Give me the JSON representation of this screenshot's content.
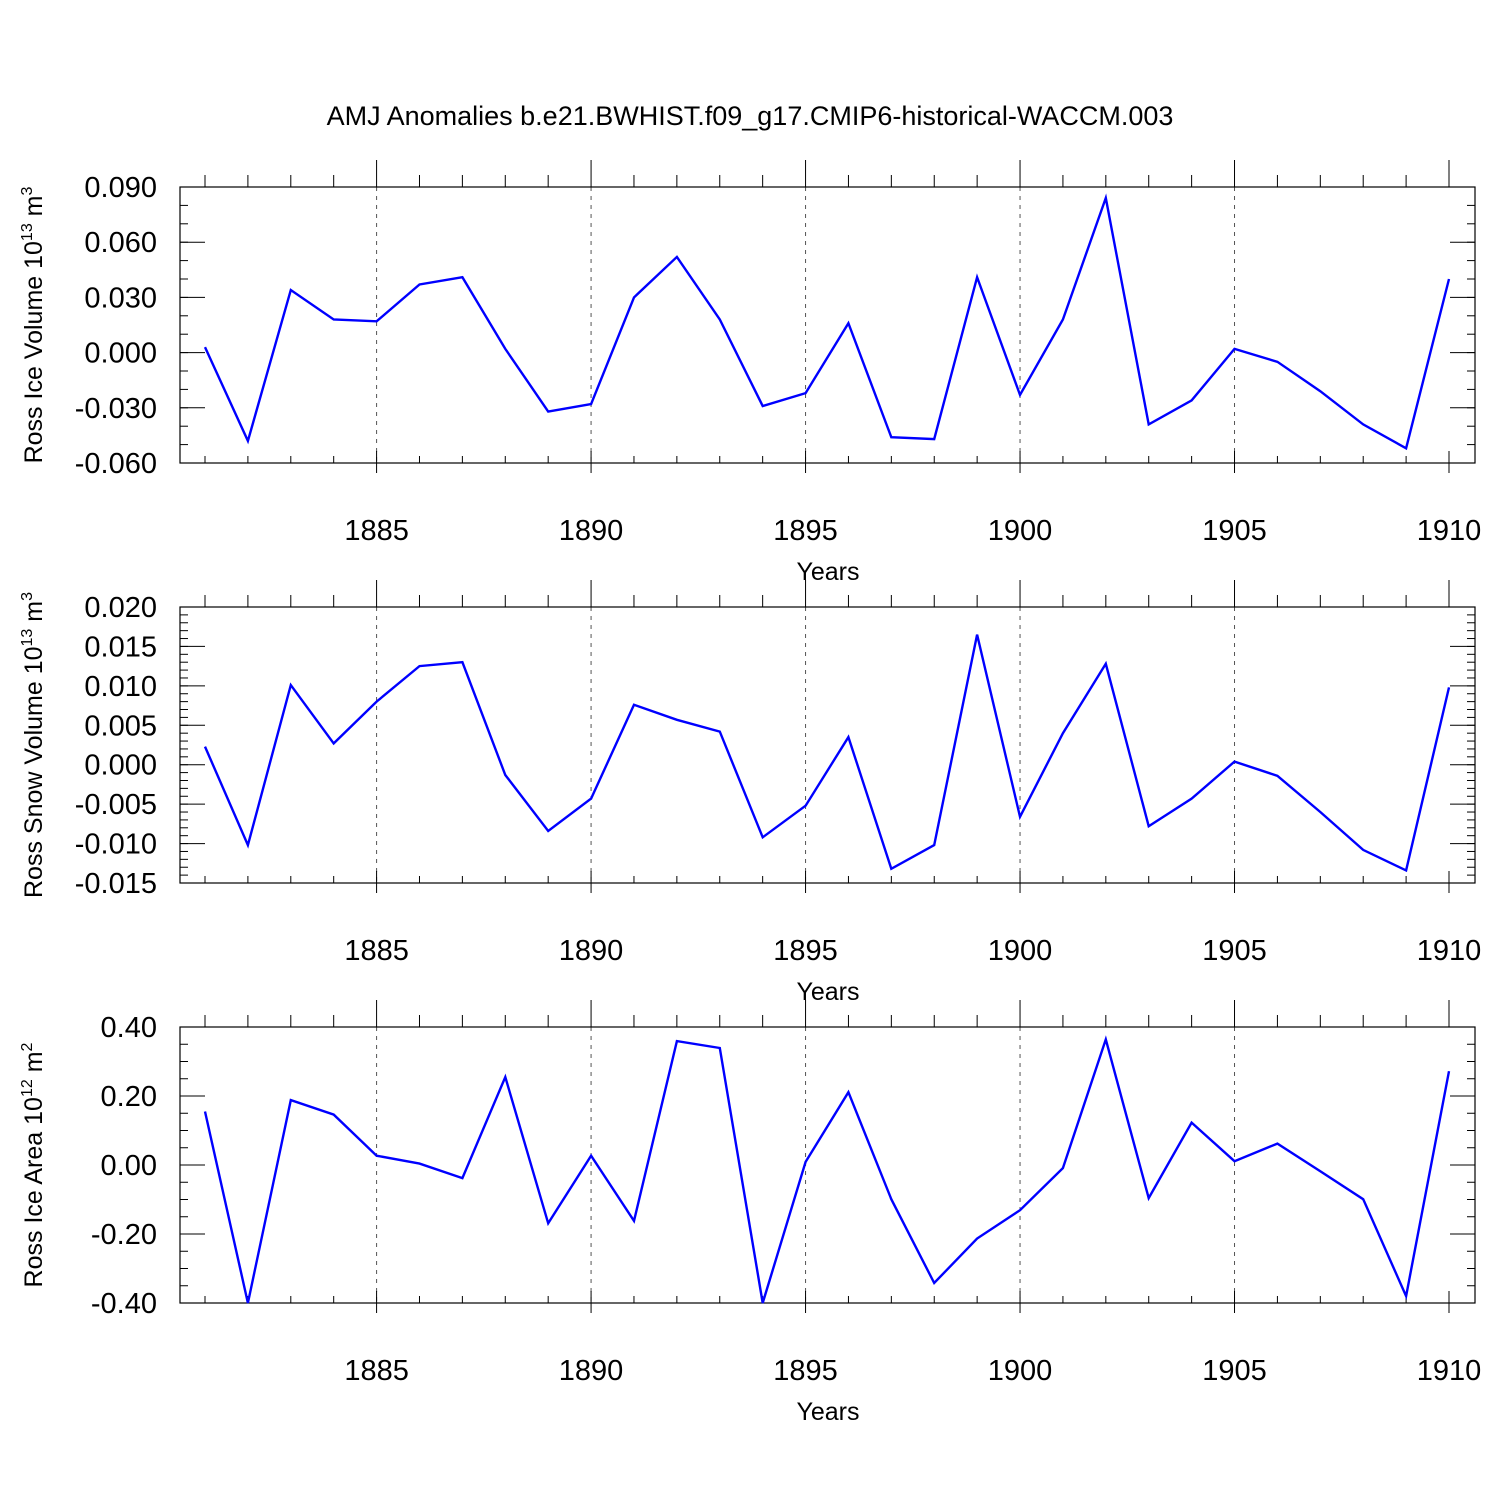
{
  "title": "AMJ Anomalies b.e21.BWHIST.f09_g17.CMIP6-historical-WACCM.003",
  "chart_data": [
    {
      "type": "line",
      "xlabel": "Years",
      "ylabel": "Ross Ice Volume 10",
      "ylabel_exp": "13",
      "ylabel_unit": " m",
      "ylabel_unit_exp": "3",
      "xlim": [
        1881,
        1910
      ],
      "ylim": [
        -0.06,
        0.09
      ],
      "xticks": [
        1885,
        1890,
        1895,
        1900,
        1905,
        1910
      ],
      "yticks": [
        -0.06,
        -0.03,
        0.0,
        0.03,
        0.06,
        0.09
      ],
      "ytick_labels": [
        "-0.060",
        "-0.030",
        "0.000",
        "0.030",
        "0.060",
        "0.090"
      ],
      "ytick_minor_step": 0.01,
      "grid": "vertical dashed at major x ticks",
      "color": "#0000ff",
      "x": [
        1881,
        1882,
        1883,
        1884,
        1885,
        1886,
        1887,
        1888,
        1889,
        1890,
        1891,
        1892,
        1893,
        1894,
        1895,
        1896,
        1897,
        1898,
        1899,
        1900,
        1901,
        1902,
        1903,
        1904,
        1905,
        1906,
        1907,
        1908,
        1909,
        1910
      ],
      "values": [
        0.003,
        -0.048,
        0.034,
        0.018,
        0.017,
        0.037,
        0.041,
        0.002,
        -0.032,
        -0.028,
        0.03,
        0.052,
        0.018,
        -0.029,
        -0.022,
        0.016,
        -0.046,
        -0.047,
        0.041,
        -0.023,
        0.018,
        0.084,
        -0.039,
        -0.026,
        0.002,
        -0.005,
        -0.021,
        -0.039,
        -0.052,
        0.04
      ]
    },
    {
      "type": "line",
      "xlabel": "Years",
      "ylabel": "Ross Snow Volume 10",
      "ylabel_exp": "13",
      "ylabel_unit": " m",
      "ylabel_unit_exp": "3",
      "xlim": [
        1881,
        1910
      ],
      "ylim": [
        -0.015,
        0.02
      ],
      "xticks": [
        1885,
        1890,
        1895,
        1900,
        1905,
        1910
      ],
      "yticks": [
        -0.015,
        -0.01,
        -0.005,
        0.0,
        0.005,
        0.01,
        0.015,
        0.02
      ],
      "ytick_labels": [
        "-0.015",
        "-0.010",
        "-0.005",
        "0.000",
        "0.005",
        "0.010",
        "0.015",
        "0.020"
      ],
      "ytick_minor_step": 0.001,
      "grid": "vertical dashed at major x ticks",
      "color": "#0000ff",
      "x": [
        1881,
        1882,
        1883,
        1884,
        1885,
        1886,
        1887,
        1888,
        1889,
        1890,
        1891,
        1892,
        1893,
        1894,
        1895,
        1896,
        1897,
        1898,
        1899,
        1900,
        1901,
        1902,
        1903,
        1904,
        1905,
        1906,
        1907,
        1908,
        1909,
        1910
      ],
      "values": [
        0.0023,
        -0.0102,
        0.0101,
        0.0027,
        0.008,
        0.0125,
        0.013,
        -0.0013,
        -0.0084,
        -0.0043,
        0.0076,
        0.0057,
        0.0042,
        -0.0092,
        -0.0052,
        0.0035,
        -0.0132,
        -0.0102,
        0.0165,
        -0.0066,
        0.004,
        0.0128,
        -0.0078,
        -0.0043,
        0.0004,
        -0.0014,
        -0.006,
        -0.0108,
        -0.0134,
        0.0098
      ]
    },
    {
      "type": "line",
      "xlabel": "Years",
      "ylabel": "Ross Ice Area 10",
      "ylabel_exp": "12",
      "ylabel_unit": " m",
      "ylabel_unit_exp": "2",
      "xlim": [
        1881,
        1910
      ],
      "ylim": [
        -0.4,
        0.4
      ],
      "xticks": [
        1885,
        1890,
        1895,
        1900,
        1905,
        1910
      ],
      "yticks": [
        -0.4,
        -0.2,
        0.0,
        0.2,
        0.4
      ],
      "ytick_labels": [
        "-0.40",
        "-0.20",
        "0.00",
        "0.20",
        "0.40"
      ],
      "ytick_minor_step": 0.05,
      "grid": "vertical dashed at major x ticks",
      "color": "#0000ff",
      "x": [
        1881,
        1882,
        1883,
        1884,
        1885,
        1886,
        1887,
        1888,
        1889,
        1890,
        1891,
        1892,
        1893,
        1894,
        1895,
        1896,
        1897,
        1898,
        1899,
        1900,
        1901,
        1902,
        1903,
        1904,
        1905,
        1906,
        1907,
        1908,
        1909,
        1910
      ],
      "values": [
        0.155,
        -0.4,
        0.188,
        0.146,
        0.027,
        0.004,
        -0.038,
        0.255,
        -0.169,
        0.027,
        -0.162,
        0.359,
        0.339,
        -0.4,
        0.009,
        0.211,
        -0.099,
        -0.342,
        -0.213,
        -0.131,
        -0.009,
        0.364,
        -0.096,
        0.123,
        0.011,
        0.062,
        -0.018,
        -0.099,
        -0.38,
        0.272
      ]
    }
  ]
}
